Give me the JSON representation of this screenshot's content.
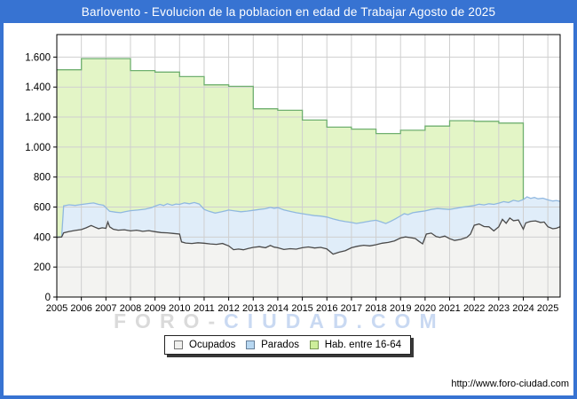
{
  "window": {
    "title": "Barlovento - Evolucion de la poblacion en edad de Trabajar Agosto de 2025"
  },
  "colors": {
    "frame_blue": "#3773d2",
    "grid": "#cfcfcf",
    "plot_border": "#000000",
    "watermark_gray": "#dadada",
    "watermark_blue": "#c9d9f2"
  },
  "watermark": {
    "left_part": "FORO-",
    "right_part": "CIUDAD.COM"
  },
  "footer": {
    "url": "http://www.foro-ciudad.com"
  },
  "legend": {
    "items": [
      {
        "label": "Ocupados",
        "fill": "#f0f0ee",
        "border": "#777777"
      },
      {
        "label": "Parados",
        "fill": "#b7d7f1",
        "border": "#667f99"
      },
      {
        "label": "Hab. entre 16-64",
        "fill": "#cdee9b",
        "border": "#7a9a55"
      }
    ]
  },
  "chart_data": {
    "type": "area",
    "title": "Barlovento - Evolucion de la poblacion en edad de Trabajar Agosto de 2025",
    "x_domain": [
      2005,
      2025.5
    ],
    "y_domain": [
      0,
      1750
    ],
    "grid": true,
    "legend_position": "bottom",
    "x_ticks": [
      2005,
      2006,
      2007,
      2008,
      2009,
      2010,
      2011,
      2012,
      2013,
      2014,
      2015,
      2016,
      2017,
      2018,
      2019,
      2020,
      2021,
      2022,
      2023,
      2024,
      2025
    ],
    "y_ticks": [
      {
        "value": 0,
        "label": "0"
      },
      {
        "value": 200,
        "label": "200"
      },
      {
        "value": 400,
        "label": "400"
      },
      {
        "value": 600,
        "label": "600"
      },
      {
        "value": 800,
        "label": "800"
      },
      {
        "value": 1000,
        "label": "1.000"
      },
      {
        "value": 1200,
        "label": "1.200"
      },
      {
        "value": 1400,
        "label": "1.400"
      },
      {
        "value": 1600,
        "label": "1.600"
      }
    ],
    "series": [
      {
        "name": "Hab. entre 16-64",
        "style": "step-year",
        "fill": "#e3f5c6",
        "stroke": "#70b070",
        "start_year": 2005,
        "years": [
          2005,
          2006,
          2007,
          2008,
          2009,
          2010,
          2011,
          2012,
          2013,
          2014,
          2015,
          2016,
          2017,
          2018,
          2019,
          2020,
          2021,
          2022,
          2023
        ],
        "values": [
          1515,
          1590,
          1590,
          1510,
          1500,
          1470,
          1415,
          1405,
          1255,
          1245,
          1180,
          1133,
          1120,
          1090,
          1112,
          1140,
          1176,
          1172,
          1160
        ],
        "end_x": 2024.0,
        "end_value": 650
      },
      {
        "name": "Parados",
        "style": "line",
        "fill": "#e0edf9",
        "stroke": "#90b8e0",
        "points": [
          [
            2005.0,
            400
          ],
          [
            2005.2,
            402
          ],
          [
            2005.28,
            608
          ],
          [
            2005.5,
            615
          ],
          [
            2005.75,
            611
          ],
          [
            2006.0,
            617
          ],
          [
            2006.3,
            624
          ],
          [
            2006.5,
            627
          ],
          [
            2006.7,
            618
          ],
          [
            2006.9,
            612
          ],
          [
            2007.0,
            596
          ],
          [
            2007.15,
            572
          ],
          [
            2007.4,
            566
          ],
          [
            2007.6,
            562
          ],
          [
            2007.8,
            570
          ],
          [
            2008.0,
            576
          ],
          [
            2008.3,
            580
          ],
          [
            2008.6,
            586
          ],
          [
            2008.85,
            596
          ],
          [
            2009.0,
            606
          ],
          [
            2009.2,
            618
          ],
          [
            2009.35,
            610
          ],
          [
            2009.5,
            622
          ],
          [
            2009.7,
            612
          ],
          [
            2009.85,
            620
          ],
          [
            2010.0,
            618
          ],
          [
            2010.2,
            628
          ],
          [
            2010.4,
            622
          ],
          [
            2010.6,
            630
          ],
          [
            2010.8,
            620
          ],
          [
            2011.0,
            584
          ],
          [
            2011.2,
            572
          ],
          [
            2011.45,
            560
          ],
          [
            2011.7,
            568
          ],
          [
            2011.9,
            576
          ],
          [
            2012.0,
            580
          ],
          [
            2012.25,
            574
          ],
          [
            2012.5,
            569
          ],
          [
            2012.75,
            573
          ],
          [
            2013.0,
            578
          ],
          [
            2013.25,
            584
          ],
          [
            2013.5,
            589
          ],
          [
            2013.7,
            598
          ],
          [
            2013.85,
            592
          ],
          [
            2014.0,
            596
          ],
          [
            2014.25,
            581
          ],
          [
            2014.5,
            571
          ],
          [
            2014.75,
            562
          ],
          [
            2015.0,
            556
          ],
          [
            2015.25,
            549
          ],
          [
            2015.5,
            543
          ],
          [
            2015.75,
            540
          ],
          [
            2016.0,
            533
          ],
          [
            2016.25,
            521
          ],
          [
            2016.5,
            511
          ],
          [
            2016.75,
            503
          ],
          [
            2017.0,
            497
          ],
          [
            2017.2,
            491
          ],
          [
            2017.4,
            496
          ],
          [
            2017.6,
            502
          ],
          [
            2017.8,
            508
          ],
          [
            2018.0,
            512
          ],
          [
            2018.2,
            502
          ],
          [
            2018.4,
            490
          ],
          [
            2018.6,
            505
          ],
          [
            2018.8,
            522
          ],
          [
            2019.0,
            541
          ],
          [
            2019.15,
            556
          ],
          [
            2019.3,
            549
          ],
          [
            2019.5,
            562
          ],
          [
            2019.75,
            569
          ],
          [
            2020.0,
            574
          ],
          [
            2020.25,
            584
          ],
          [
            2020.5,
            590
          ],
          [
            2020.75,
            587
          ],
          [
            2021.0,
            584
          ],
          [
            2021.25,
            591
          ],
          [
            2021.5,
            599
          ],
          [
            2021.75,
            604
          ],
          [
            2022.0,
            610
          ],
          [
            2022.2,
            619
          ],
          [
            2022.4,
            614
          ],
          [
            2022.6,
            622
          ],
          [
            2022.8,
            618
          ],
          [
            2023.0,
            626
          ],
          [
            2023.2,
            636
          ],
          [
            2023.4,
            630
          ],
          [
            2023.6,
            645
          ],
          [
            2023.8,
            638
          ],
          [
            2024.0,
            650
          ],
          [
            2024.15,
            668
          ],
          [
            2024.3,
            658
          ],
          [
            2024.45,
            664
          ],
          [
            2024.6,
            655
          ],
          [
            2024.8,
            659
          ],
          [
            2025.0,
            648
          ],
          [
            2025.2,
            640
          ],
          [
            2025.35,
            644
          ],
          [
            2025.5,
            638
          ]
        ]
      },
      {
        "name": "Ocupados",
        "style": "line",
        "fill": "#f3f3f1",
        "stroke": "#4a4a4a",
        "points": [
          [
            2005.0,
            398
          ],
          [
            2005.2,
            400
          ],
          [
            2005.28,
            428
          ],
          [
            2005.5,
            437
          ],
          [
            2005.75,
            444
          ],
          [
            2006.0,
            450
          ],
          [
            2006.2,
            462
          ],
          [
            2006.4,
            477
          ],
          [
            2006.55,
            466
          ],
          [
            2006.7,
            456
          ],
          [
            2006.85,
            462
          ],
          [
            2007.0,
            458
          ],
          [
            2007.08,
            500
          ],
          [
            2007.15,
            468
          ],
          [
            2007.3,
            452
          ],
          [
            2007.5,
            446
          ],
          [
            2007.75,
            449
          ],
          [
            2008.0,
            441
          ],
          [
            2008.25,
            446
          ],
          [
            2008.5,
            438
          ],
          [
            2008.75,
            443
          ],
          [
            2009.0,
            436
          ],
          [
            2009.25,
            430
          ],
          [
            2009.5,
            428
          ],
          [
            2009.75,
            424
          ],
          [
            2010.0,
            420
          ],
          [
            2010.08,
            368
          ],
          [
            2010.25,
            360
          ],
          [
            2010.5,
            357
          ],
          [
            2010.75,
            362
          ],
          [
            2011.0,
            359
          ],
          [
            2011.25,
            354
          ],
          [
            2011.5,
            351
          ],
          [
            2011.75,
            357
          ],
          [
            2012.0,
            341
          ],
          [
            2012.2,
            316
          ],
          [
            2012.4,
            320
          ],
          [
            2012.6,
            315
          ],
          [
            2012.8,
            324
          ],
          [
            2013.0,
            331
          ],
          [
            2013.25,
            336
          ],
          [
            2013.5,
            329
          ],
          [
            2013.7,
            344
          ],
          [
            2013.85,
            333
          ],
          [
            2014.0,
            329
          ],
          [
            2014.25,
            317
          ],
          [
            2014.5,
            322
          ],
          [
            2014.75,
            319
          ],
          [
            2015.0,
            329
          ],
          [
            2015.25,
            334
          ],
          [
            2015.5,
            327
          ],
          [
            2015.75,
            331
          ],
          [
            2016.0,
            321
          ],
          [
            2016.25,
            286
          ],
          [
            2016.5,
            299
          ],
          [
            2016.75,
            309
          ],
          [
            2017.0,
            329
          ],
          [
            2017.25,
            339
          ],
          [
            2017.5,
            345
          ],
          [
            2017.75,
            341
          ],
          [
            2018.0,
            349
          ],
          [
            2018.25,
            359
          ],
          [
            2018.5,
            364
          ],
          [
            2018.75,
            374
          ],
          [
            2019.0,
            394
          ],
          [
            2019.2,
            401
          ],
          [
            2019.4,
            396
          ],
          [
            2019.6,
            390
          ],
          [
            2019.75,
            371
          ],
          [
            2019.9,
            355
          ],
          [
            2020.05,
            420
          ],
          [
            2020.25,
            426
          ],
          [
            2020.45,
            403
          ],
          [
            2020.6,
            398
          ],
          [
            2020.8,
            407
          ],
          [
            2021.0,
            389
          ],
          [
            2021.2,
            377
          ],
          [
            2021.45,
            384
          ],
          [
            2021.7,
            398
          ],
          [
            2021.85,
            420
          ],
          [
            2022.0,
            478
          ],
          [
            2022.2,
            487
          ],
          [
            2022.4,
            470
          ],
          [
            2022.6,
            468
          ],
          [
            2022.8,
            441
          ],
          [
            2023.0,
            469
          ],
          [
            2023.15,
            518
          ],
          [
            2023.3,
            492
          ],
          [
            2023.45,
            527
          ],
          [
            2023.6,
            509
          ],
          [
            2023.8,
            514
          ],
          [
            2024.0,
            452
          ],
          [
            2024.1,
            494
          ],
          [
            2024.3,
            505
          ],
          [
            2024.5,
            508
          ],
          [
            2024.7,
            497
          ],
          [
            2024.85,
            500
          ],
          [
            2025.0,
            469
          ],
          [
            2025.2,
            455
          ],
          [
            2025.35,
            459
          ],
          [
            2025.5,
            469
          ]
        ]
      }
    ]
  }
}
